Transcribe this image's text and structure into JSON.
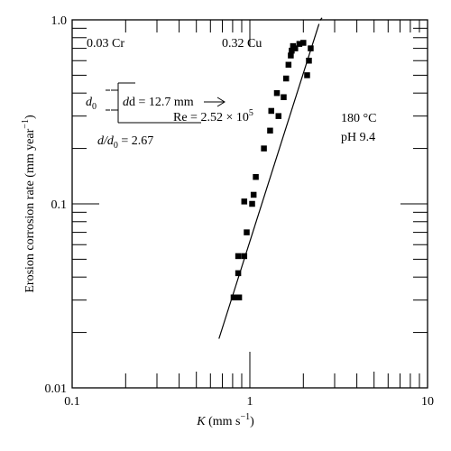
{
  "chart_data": {
    "type": "scatter",
    "xscale": "log",
    "yscale": "log",
    "xlim": [
      0.1,
      10
    ],
    "ylim": [
      0.01,
      1.0
    ],
    "xlabel": {
      "main": "K",
      "unit": "(mm s",
      "exp": "−1",
      "close": ")"
    },
    "ylabel": {
      "main": "Erosion corrosion rate (mm year",
      "exp": "−1",
      "close": ")"
    },
    "xticks": [
      {
        "value": 0.1,
        "label": "0.1"
      },
      {
        "value": 1,
        "label": "1"
      },
      {
        "value": 10,
        "label": "10"
      }
    ],
    "yticks": [
      {
        "value": 0.01,
        "label": "0.01"
      },
      {
        "value": 0.1,
        "label": "0.1"
      },
      {
        "value": 1.0,
        "label": "1.0"
      }
    ],
    "points": [
      [
        0.81,
        0.031
      ],
      [
        0.87,
        0.031
      ],
      [
        0.86,
        0.042
      ],
      [
        0.86,
        0.052
      ],
      [
        0.93,
        0.052
      ],
      [
        0.96,
        0.07
      ],
      [
        0.93,
        0.103
      ],
      [
        1.03,
        0.1
      ],
      [
        1.05,
        0.112
      ],
      [
        1.08,
        0.14
      ],
      [
        1.2,
        0.2
      ],
      [
        1.3,
        0.25
      ],
      [
        1.32,
        0.32
      ],
      [
        1.45,
        0.3
      ],
      [
        1.42,
        0.4
      ],
      [
        1.55,
        0.38
      ],
      [
        1.6,
        0.48
      ],
      [
        1.65,
        0.57
      ],
      [
        1.7,
        0.64
      ],
      [
        1.72,
        0.68
      ],
      [
        1.75,
        0.72
      ],
      [
        1.8,
        0.7
      ],
      [
        1.9,
        0.74
      ],
      [
        2.0,
        0.75
      ],
      [
        2.1,
        0.5
      ],
      [
        2.15,
        0.6
      ],
      [
        2.2,
        0.7
      ]
    ],
    "fit_line": {
      "x": [
        0.67,
        2.45
      ],
      "y": [
        0.0185,
        0.95
      ],
      "dash_extension_to": [
        2.55,
        0.98
      ]
    }
  },
  "annotations": {
    "cr": "0.03 Cr",
    "cu": "0.32 Cu",
    "temp": "180 °C",
    "ph": "pH 9.4",
    "d0": "d",
    "d0_sub": "0",
    "d_eq": "d = 12.7 mm",
    "re_eq": "Re = 2.52 × 10",
    "re_exp": "5",
    "ratio_d": "d/d",
    "ratio_sub": "0",
    "ratio_val": " = 2.67"
  }
}
